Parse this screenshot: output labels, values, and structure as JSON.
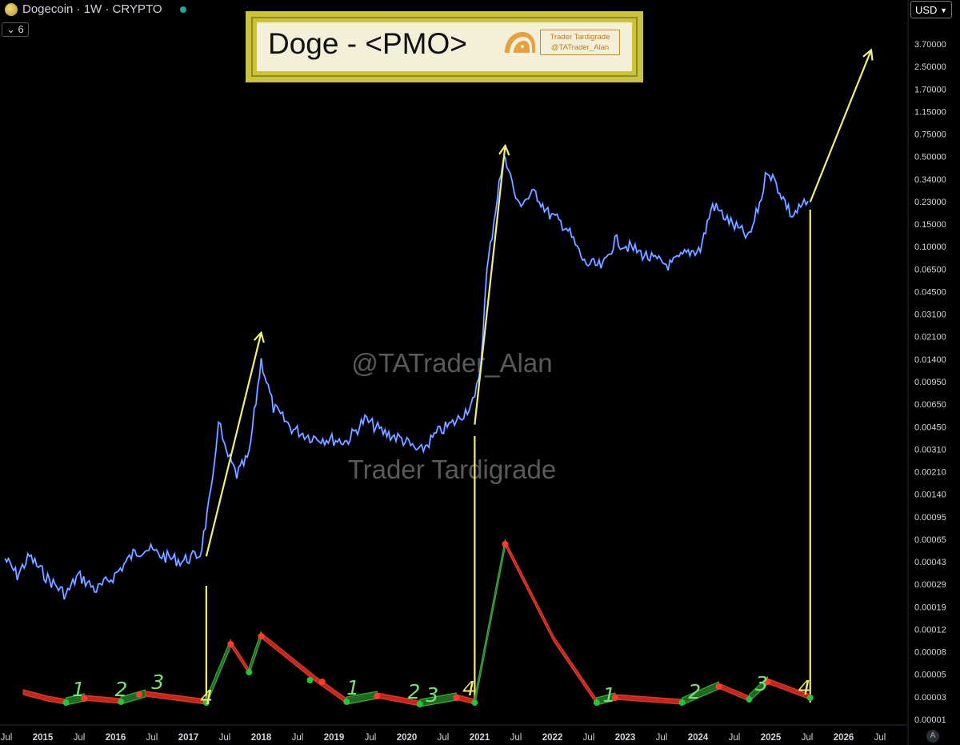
{
  "header": {
    "symbol": "Dogecoin · 1W · CRYPTO",
    "interval_badge": "6",
    "currency": "USD",
    "auto_label": "A"
  },
  "title_card": {
    "title": "Doge - <PMO>",
    "brand_line1": "Trader Tardigrade",
    "brand_line2": "@TATrader_Alan"
  },
  "watermarks": [
    "@TATrader_Alan",
    "Trader Tardigrade"
  ],
  "colors": {
    "background": "#000000",
    "price_line": "#2962ff",
    "price_highlight": "#c8d2f0",
    "arrow": "#f5ec7a",
    "pmo_up": "#1e6b1e",
    "pmo_down": "#c0281e",
    "signal_buy": "#29c03c",
    "signal_sell": "#ff3b30",
    "count_green": "#7be07b",
    "count_yellow": "#f2ea78",
    "title_frame": "#cbc43b"
  },
  "chart_data": {
    "type": "line",
    "title": "Doge - <PMO>",
    "price_scale": "log",
    "y_ticks": [
      "3.70000",
      "2.50000",
      "1.70000",
      "1.15000",
      "0.75000",
      "0.50000",
      "0.34000",
      "0.23000",
      "0.15000",
      "0.10000",
      "0.06500",
      "0.04500",
      "0.03100",
      "0.02100",
      "0.01400",
      "0.00950",
      "0.00650",
      "0.00450",
      "0.00310",
      "0.00210",
      "0.00140",
      "0.00095",
      "0.00065",
      "0.00043",
      "0.00029",
      "0.00019",
      "0.00012",
      "0.00008",
      "0.00005",
      "0.00003",
      "0.00001"
    ],
    "x_ticks": [
      "Jul",
      "2015",
      "Jul",
      "2016",
      "Jul",
      "2017",
      "Jul",
      "2018",
      "Jul",
      "2019",
      "Jul",
      "2020",
      "Jul",
      "2021",
      "Jul",
      "2022",
      "Jul",
      "2023",
      "Jul",
      "2024",
      "Jul",
      "2025",
      "Jul",
      "2026",
      "Jul"
    ],
    "price_series": {
      "name": "",
      "points": [
        [
          "2014-07",
          0.00022
        ],
        [
          "2014-09",
          0.00016
        ],
        [
          "2014-11",
          0.00023
        ],
        [
          "2015-02",
          0.00015
        ],
        [
          "2015-05",
          0.00011
        ],
        [
          "2015-07",
          0.00016
        ],
        [
          "2015-10",
          0.00012
        ],
        [
          "2016-01",
          0.00016
        ],
        [
          "2016-04",
          0.00024
        ],
        [
          "2016-06",
          0.00027
        ],
        [
          "2016-09",
          0.00023
        ],
        [
          "2016-12",
          0.00021
        ],
        [
          "2017-03",
          0.00024
        ],
        [
          "2017-05",
          0.0009
        ],
        [
          "2017-06",
          0.0033
        ],
        [
          "2017-07",
          0.0018
        ],
        [
          "2017-09",
          0.0011
        ],
        [
          "2017-11",
          0.0016
        ],
        [
          "2018-01",
          0.01
        ],
        [
          "2018-03",
          0.004
        ],
        [
          "2018-06",
          0.0027
        ],
        [
          "2018-09",
          0.0023
        ],
        [
          "2018-12",
          0.0022
        ],
        [
          "2019-03",
          0.0021
        ],
        [
          "2019-06",
          0.0032
        ],
        [
          "2019-09",
          0.0025
        ],
        [
          "2019-12",
          0.0022
        ],
        [
          "2020-03",
          0.0017
        ],
        [
          "2020-06",
          0.0025
        ],
        [
          "2020-09",
          0.0031
        ],
        [
          "2020-12",
          0.0046
        ],
        [
          "2021-01",
          0.0095
        ],
        [
          "2021-02",
          0.055
        ],
        [
          "2021-04",
          0.3
        ],
        [
          "2021-05",
          0.52
        ],
        [
          "2021-07",
          0.2
        ],
        [
          "2021-10",
          0.25
        ],
        [
          "2021-12",
          0.17
        ],
        [
          "2022-03",
          0.13
        ],
        [
          "2022-06",
          0.065
        ],
        [
          "2022-09",
          0.06
        ],
        [
          "2022-11",
          0.1
        ],
        [
          "2023-02",
          0.085
        ],
        [
          "2023-05",
          0.07
        ],
        [
          "2023-08",
          0.062
        ],
        [
          "2023-11",
          0.08
        ],
        [
          "2024-01",
          0.085
        ],
        [
          "2024-03",
          0.2
        ],
        [
          "2024-06",
          0.14
        ],
        [
          "2024-09",
          0.105
        ],
        [
          "2024-11",
          0.23
        ],
        [
          "2024-12",
          0.4
        ],
        [
          "2025-02",
          0.26
        ],
        [
          "2025-04",
          0.16
        ],
        [
          "2025-06",
          0.2
        ],
        [
          "2025-07",
          0.2
        ]
      ]
    },
    "arrows": [
      {
        "from": [
          "2017-04",
          0.00023
        ],
        "to": [
          "2018-01",
          0.017
        ]
      },
      {
        "from": [
          "2020-12",
          0.0029
        ],
        "to": [
          "2021-05",
          0.62
        ]
      },
      {
        "from": [
          "2025-07",
          0.21
        ],
        "to": [
          "2026-05",
          3.9
        ]
      }
    ],
    "vertical_markers": [
      "2017-04",
      "2020-12",
      "2025-07"
    ],
    "pmo": {
      "name": "",
      "segments": [
        {
          "trend": "down",
          "points": [
            [
              "2014-10",
              14
            ],
            [
              "2015-02",
              6
            ],
            [
              "2015-05",
              2
            ]
          ]
        },
        {
          "trend": "up",
          "points": [
            [
              "2015-05",
              2
            ],
            [
              "2015-08",
              7
            ]
          ]
        },
        {
          "trend": "down",
          "points": [
            [
              "2015-08",
              7
            ],
            [
              "2016-02",
              3
            ]
          ]
        },
        {
          "trend": "up",
          "points": [
            [
              "2016-02",
              3
            ],
            [
              "2016-06",
              12
            ]
          ]
        },
        {
          "trend": "down",
          "points": [
            [
              "2016-06",
              12
            ],
            [
              "2017-04",
              2
            ]
          ]
        },
        {
          "trend": "up",
          "points": [
            [
              "2017-04",
              2
            ],
            [
              "2017-08",
              75
            ]
          ]
        },
        {
          "trend": "down",
          "points": [
            [
              "2017-08",
              75
            ],
            [
              "2017-11",
              40
            ]
          ]
        },
        {
          "trend": "up",
          "points": [
            [
              "2017-11",
              40
            ],
            [
              "2018-01",
              85
            ]
          ]
        },
        {
          "trend": "down",
          "points": [
            [
              "2018-01",
              85
            ],
            [
              "2018-10",
              30
            ]
          ]
        },
        {
          "trend": "down",
          "points": [
            [
              "2018-10",
              30
            ],
            [
              "2019-03",
              3
            ]
          ]
        },
        {
          "trend": "up",
          "points": [
            [
              "2019-03",
              3
            ],
            [
              "2019-08",
              10
            ]
          ]
        },
        {
          "trend": "down",
          "points": [
            [
              "2019-08",
              10
            ],
            [
              "2020-03",
              0
            ]
          ]
        },
        {
          "trend": "up",
          "points": [
            [
              "2020-03",
              0
            ],
            [
              "2020-09",
              8
            ]
          ]
        },
        {
          "trend": "down",
          "points": [
            [
              "2020-09",
              8
            ],
            [
              "2020-12",
              2
            ]
          ]
        },
        {
          "trend": "up",
          "points": [
            [
              "2020-12",
              2
            ],
            [
              "2021-05",
              200
            ]
          ]
        },
        {
          "trend": "down",
          "points": [
            [
              "2021-05",
              200
            ],
            [
              "2022-01",
              80
            ],
            [
              "2022-08",
              2
            ]
          ]
        },
        {
          "trend": "up",
          "points": [
            [
              "2022-08",
              2
            ],
            [
              "2022-11",
              8
            ]
          ]
        },
        {
          "trend": "down",
          "points": [
            [
              "2022-11",
              8
            ],
            [
              "2023-10",
              2
            ]
          ]
        },
        {
          "trend": "up",
          "points": [
            [
              "2023-10",
              2
            ],
            [
              "2024-04",
              22
            ]
          ]
        },
        {
          "trend": "down",
          "points": [
            [
              "2024-04",
              22
            ],
            [
              "2024-09",
              6
            ]
          ]
        },
        {
          "trend": "up",
          "points": [
            [
              "2024-09",
              6
            ],
            [
              "2024-12",
              28
            ]
          ]
        },
        {
          "trend": "down",
          "points": [
            [
              "2024-12",
              28
            ],
            [
              "2025-07",
              8
            ]
          ]
        }
      ],
      "signals": [
        {
          "type": "buy",
          "x": "2015-05",
          "v": 2
        },
        {
          "type": "sell",
          "x": "2015-08",
          "v": 7
        },
        {
          "type": "buy",
          "x": "2016-02",
          "v": 3
        },
        {
          "type": "sell",
          "x": "2016-05",
          "v": 12
        },
        {
          "type": "buy",
          "x": "2017-04",
          "v": 2
        },
        {
          "type": "sell",
          "x": "2017-08",
          "v": 75
        },
        {
          "type": "buy",
          "x": "2017-11",
          "v": 40
        },
        {
          "type": "sell",
          "x": "2018-01",
          "v": 85
        },
        {
          "type": "buy",
          "x": "2018-09",
          "v": 30
        },
        {
          "type": "sell",
          "x": "2018-11",
          "v": 28
        },
        {
          "type": "buy",
          "x": "2019-03",
          "v": 3
        },
        {
          "type": "sell",
          "x": "2019-08",
          "v": 10
        },
        {
          "type": "buy",
          "x": "2020-03",
          "v": 0
        },
        {
          "type": "sell",
          "x": "2020-09",
          "v": 8
        },
        {
          "type": "buy",
          "x": "2020-12",
          "v": 2
        },
        {
          "type": "sell",
          "x": "2021-05",
          "v": 200
        },
        {
          "type": "buy",
          "x": "2022-08",
          "v": 2
        },
        {
          "type": "sell",
          "x": "2022-11",
          "v": 8
        },
        {
          "type": "buy",
          "x": "2023-10",
          "v": 2
        },
        {
          "type": "sell",
          "x": "2024-04",
          "v": 22
        },
        {
          "type": "buy",
          "x": "2024-09",
          "v": 6
        },
        {
          "type": "sell",
          "x": "2024-12",
          "v": 28
        },
        {
          "type": "buy",
          "x": "2025-07",
          "v": 8
        }
      ]
    },
    "counts": [
      {
        "label": "1",
        "x": "2015-06",
        "tone": "green"
      },
      {
        "label": "2",
        "x": "2016-01",
        "tone": "green"
      },
      {
        "label": "3",
        "x": "2016-07",
        "tone": "green"
      },
      {
        "label": "4",
        "x": "2017-03",
        "tone": "yellow"
      },
      {
        "label": "1",
        "x": "2019-03",
        "tone": "green"
      },
      {
        "label": "2",
        "x": "2020-01",
        "tone": "green"
      },
      {
        "label": "3",
        "x": "2020-04",
        "tone": "green"
      },
      {
        "label": "4",
        "x": "2020-10",
        "tone": "yellow"
      },
      {
        "label": "1",
        "x": "2022-09",
        "tone": "green"
      },
      {
        "label": "2",
        "x": "2023-11",
        "tone": "green"
      },
      {
        "label": "3",
        "x": "2024-10",
        "tone": "green"
      },
      {
        "label": "4",
        "x": "2025-05",
        "tone": "yellow"
      }
    ]
  }
}
